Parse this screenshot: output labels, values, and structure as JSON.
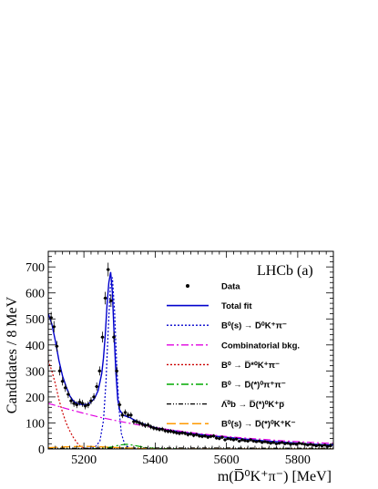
{
  "chart_data": {
    "type": "line",
    "title": "",
    "xlabel": "m(D̅⁰K⁺π⁻) [MeV]",
    "ylabel": "Candidates / 8 MeV",
    "xlim": [
      5100,
      5900
    ],
    "ylim": [
      0,
      760
    ],
    "xticks": [
      "5200",
      "5400",
      "5600",
      "5800"
    ],
    "yticks": [
      "0",
      "100",
      "200",
      "300",
      "400",
      "500",
      "600",
      "700"
    ],
    "experiment_label": "LHCb (a)",
    "legend_position": "right",
    "legend": [
      {
        "label": "Data",
        "style": "marker",
        "color": "#000000"
      },
      {
        "label": "Total fit",
        "style": "solid",
        "color": "#0000cc"
      },
      {
        "label": "B⁰(s) → D̅⁰K⁺π⁻",
        "style": "dotted",
        "color": "#0000cc"
      },
      {
        "label": "Combinatorial bkg.",
        "style": "dashdot",
        "color": "#e000e0"
      },
      {
        "label": "B⁰ → D̅*⁰K⁺π⁻",
        "style": "dotted",
        "color": "#cc0000"
      },
      {
        "label": "B⁰ → D̅(*)⁰π⁺π⁻",
        "style": "dashdot",
        "color": "#00aa00"
      },
      {
        "label": "Λ̅⁰b → D̅(*)⁰K⁺p̅",
        "style": "dashdotdot",
        "color": "#000000"
      },
      {
        "label": "B⁰(s) → D̅(*)⁰K⁺K⁻",
        "style": "longdash",
        "color": "#ff9900"
      }
    ],
    "data_points": {
      "x": [
        5108,
        5116,
        5124,
        5132,
        5140,
        5148,
        5156,
        5164,
        5172,
        5180,
        5188,
        5196,
        5204,
        5212,
        5220,
        5228,
        5236,
        5244,
        5252,
        5260,
        5268,
        5276,
        5284,
        5292,
        5300,
        5308,
        5316,
        5324,
        5332,
        5340,
        5348,
        5356,
        5364,
        5372,
        5380,
        5388,
        5396,
        5404,
        5412,
        5420,
        5428,
        5436,
        5444,
        5452,
        5460,
        5468,
        5476,
        5484,
        5492,
        5500,
        5508,
        5516,
        5524,
        5532,
        5540,
        5548,
        5556,
        5564,
        5572,
        5580,
        5588,
        5596,
        5604,
        5612,
        5620,
        5628,
        5636,
        5644,
        5652,
        5660,
        5668,
        5676,
        5684,
        5692,
        5700,
        5708,
        5716,
        5724,
        5732,
        5740,
        5748,
        5756,
        5764,
        5772,
        5780,
        5788,
        5796,
        5804,
        5812,
        5820,
        5828,
        5836,
        5844,
        5852,
        5860,
        5868,
        5876,
        5884,
        5892
      ],
      "y": [
        505,
        470,
        395,
        300,
        260,
        235,
        210,
        185,
        175,
        170,
        180,
        175,
        165,
        170,
        185,
        200,
        240,
        300,
        430,
        580,
        690,
        570,
        430,
        300,
        170,
        130,
        140,
        130,
        130,
        105,
        105,
        100,
        95,
        90,
        92,
        85,
        80,
        78,
        75,
        76,
        70,
        68,
        68,
        65,
        62,
        60,
        62,
        60,
        55,
        58,
        52,
        55,
        50,
        48,
        50,
        45,
        48,
        50,
        42,
        40,
        45,
        35,
        40,
        38,
        35,
        38,
        30,
        35,
        32,
        30,
        35,
        30,
        28,
        30,
        25,
        28,
        25,
        22,
        25,
        20,
        22,
        25,
        20,
        22,
        18,
        20,
        18,
        22,
        20,
        18,
        15,
        18,
        15,
        12,
        15,
        12,
        15,
        10,
        12
      ]
    },
    "series": [
      {
        "name": "Total fit",
        "x": [
          5100,
          5110,
          5120,
          5130,
          5140,
          5150,
          5160,
          5170,
          5180,
          5190,
          5200,
          5210,
          5220,
          5230,
          5240,
          5250,
          5255,
          5260,
          5265,
          5270,
          5275,
          5280,
          5285,
          5290,
          5295,
          5300,
          5310,
          5320,
          5330,
          5340,
          5360,
          5380,
          5400,
          5450,
          5500,
          5550,
          5600,
          5650,
          5700,
          5750,
          5800,
          5850,
          5900
        ],
        "y": [
          520,
          480,
          415,
          340,
          280,
          240,
          205,
          185,
          175,
          172,
          170,
          172,
          180,
          195,
          225,
          290,
          350,
          440,
          560,
          640,
          680,
          600,
          430,
          290,
          190,
          150,
          130,
          125,
          120,
          112,
          100,
          90,
          82,
          70,
          60,
          52,
          45,
          38,
          32,
          27,
          22,
          18,
          15
        ]
      },
      {
        "name": "B⁰(s) → D̅⁰K⁺π⁻",
        "x": [
          5100,
          5200,
          5230,
          5245,
          5255,
          5262,
          5268,
          5274,
          5280,
          5286,
          5292,
          5298,
          5305,
          5315,
          5330,
          5360,
          5400,
          5900
        ],
        "y": [
          0,
          0,
          5,
          30,
          110,
          260,
          450,
          620,
          660,
          530,
          330,
          160,
          60,
          15,
          3,
          0,
          0,
          0
        ]
      },
      {
        "name": "Combinatorial bkg.",
        "x": [
          5100,
          5150,
          5200,
          5250,
          5300,
          5350,
          5400,
          5450,
          5500,
          5550,
          5600,
          5650,
          5700,
          5750,
          5800,
          5850,
          5900
        ],
        "y": [
          175,
          155,
          137,
          120,
          106,
          93,
          82,
          72,
          63,
          55,
          48,
          42,
          37,
          32,
          28,
          24,
          21
        ]
      },
      {
        "name": "B⁰ → D̅*⁰K⁺π⁻",
        "x": [
          5100,
          5110,
          5120,
          5130,
          5140,
          5150,
          5160,
          5170,
          5180,
          5190,
          5200,
          5210,
          5220,
          5230,
          5900
        ],
        "y": [
          340,
          300,
          250,
          190,
          140,
          100,
          70,
          45,
          25,
          10,
          3,
          1,
          0,
          0,
          0
        ]
      },
      {
        "name": "B⁰ → D̅(*)⁰π⁺π⁻",
        "x": [
          5100,
          5200,
          5250,
          5280,
          5300,
          5320,
          5340,
          5370,
          5400,
          5500,
          5900
        ],
        "y": [
          0,
          0,
          2,
          8,
          15,
          18,
          14,
          6,
          2,
          0,
          0
        ]
      },
      {
        "name": "Λ̅⁰b → D̅(*)⁰K⁺p̅",
        "x": [
          5100,
          5200,
          5300,
          5400,
          5500,
          5600,
          5700,
          5800,
          5900
        ],
        "y": [
          3,
          3,
          4,
          4,
          4,
          4,
          3,
          3,
          3
        ]
      },
      {
        "name": "B⁰(s) → D̅(*)⁰K⁺K⁻",
        "x": [
          5100,
          5150,
          5200,
          5250,
          5300,
          5350,
          5400,
          5900
        ],
        "y": [
          5,
          8,
          10,
          8,
          5,
          2,
          0,
          0
        ]
      }
    ]
  }
}
